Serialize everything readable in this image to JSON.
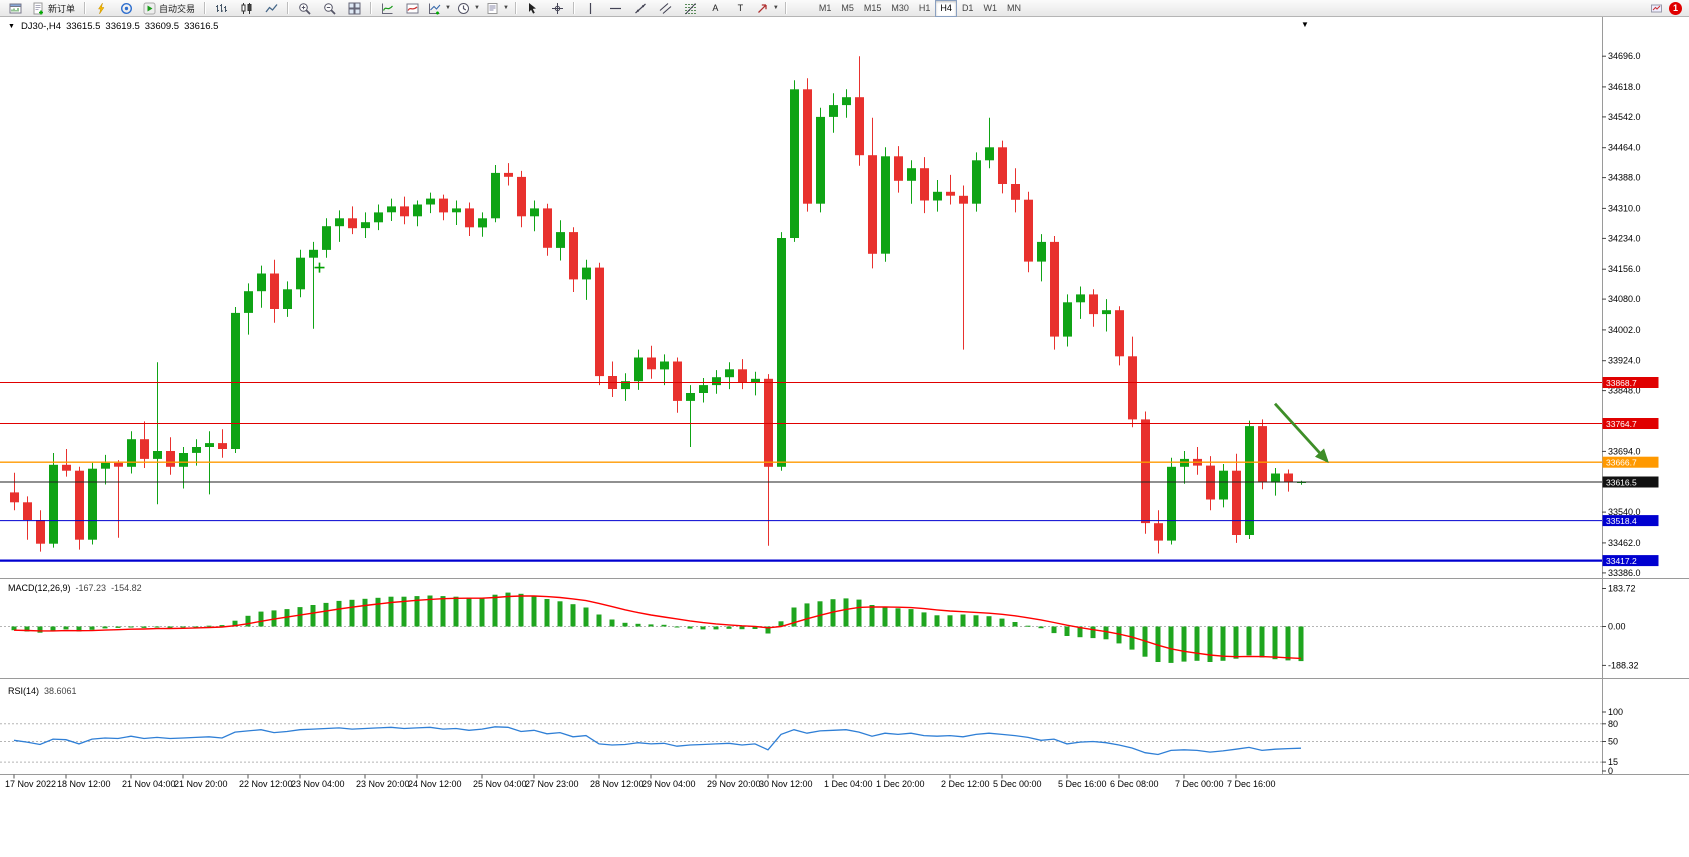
{
  "toolbar": {
    "left_buttons": [
      {
        "name": "new-chart-button",
        "icon": "chart-window"
      },
      {
        "name": "new-order-button",
        "icon": "new-order",
        "label": "新订单"
      },
      {
        "sep": true
      },
      {
        "name": "quick-trade-button",
        "icon": "lightning"
      },
      {
        "name": "community-button",
        "icon": "rings"
      },
      {
        "name": "auto-trading-button",
        "icon": "play",
        "label": "自动交易"
      },
      {
        "sep": true
      },
      {
        "name": "bar-chart-button",
        "icon": "bars"
      },
      {
        "name": "candle-chart-button",
        "icon": "candles"
      },
      {
        "name": "line-chart-button",
        "icon": "line"
      },
      {
        "sep": true
      },
      {
        "name": "zoom-in-button",
        "icon": "zoom-in"
      },
      {
        "name": "zoom-out-button",
        "icon": "zoom-out"
      },
      {
        "name": "tile-windows-button",
        "icon": "grid"
      },
      {
        "sep": true
      },
      {
        "name": "indicators-button",
        "icon": "indicator"
      },
      {
        "name": "objects-window-button",
        "icon": "indicator2"
      },
      {
        "name": "add-indicator-button",
        "icon": "add-indicator",
        "dropdown": true
      },
      {
        "name": "period-button",
        "icon": "clock",
        "dropdown": true
      },
      {
        "name": "template-button",
        "icon": "template",
        "dropdown": true
      },
      {
        "sep": true
      },
      {
        "name": "cursor-button",
        "icon": "cursor"
      },
      {
        "name": "crosshair-button",
        "icon": "crosshair"
      },
      {
        "sep": true
      },
      {
        "name": "vertical-line-button",
        "icon": "vline"
      },
      {
        "name": "horizontal-line-button",
        "icon": "hline"
      },
      {
        "name": "trendline-button",
        "icon": "trendline"
      },
      {
        "name": "channel-button",
        "icon": "channel"
      },
      {
        "name": "fibonacci-button",
        "icon": "fibo"
      },
      {
        "name": "text-tool-button",
        "label": "A"
      },
      {
        "name": "label-tool-button",
        "label": "T"
      },
      {
        "name": "arrows-tool-button",
        "icon": "arrows",
        "dropdown": true
      },
      {
        "sep": true
      }
    ],
    "timeframes": [
      "M1",
      "M5",
      "M15",
      "M30",
      "H1",
      "H4",
      "D1",
      "W1",
      "MN"
    ],
    "active_timeframe": "H4",
    "notification_badge": "1"
  },
  "chart": {
    "symbol_period": "DJ30-,H4",
    "ohlc": {
      "open": "33615.5",
      "high": "33619.5",
      "low": "33609.5",
      "close": "33616.5"
    },
    "colors": {
      "up": "#0fa315",
      "down": "#e8312e",
      "macd_hist": "#1fa51f",
      "macd_signal": "#ff0000",
      "rsi_line": "#2f7fd6",
      "level_red": "#e00000",
      "level_orange": "#ff9900",
      "level_blue": "#0000cc",
      "bid_line": "#222222",
      "arrow": "#3e8e28"
    },
    "price_badges": [
      {
        "label": "33868.7",
        "price": 33868.7,
        "bg": "#e00000"
      },
      {
        "label": "33764.7",
        "price": 33764.7,
        "bg": "#e00000"
      },
      {
        "label": "33666.7",
        "price": 33666.7,
        "bg": "#ff9900"
      },
      {
        "label": "33616.5",
        "price": 33616.5,
        "bg": "#111111"
      },
      {
        "label": "33518.4",
        "price": 33518.4,
        "bg": "#0000d0"
      },
      {
        "label": "33417.2",
        "price": 33417.2,
        "bg": "#0000d0"
      }
    ],
    "annotations": [
      {
        "type": "arrow",
        "from_bar": 97,
        "from_price": 33815,
        "to_bar": 101,
        "to_price": 33670,
        "color": "#3e8e28"
      },
      {
        "type": "plus",
        "bar": 23.5,
        "price": 34160,
        "color": "#00a000"
      }
    ]
  },
  "chart_data": [
    {
      "type": "candlestick",
      "symbol": "DJ30-",
      "timeframe": "H4",
      "y_ticks": [
        "34696.0",
        "34618.0",
        "34542.0",
        "34464.0",
        "34388.0",
        "34310.0",
        "34234.0",
        "34156.0",
        "34080.0",
        "34002.0",
        "33924.0",
        "33848.0",
        "33694.0",
        "33540.0",
        "33462.0",
        "33386.0"
      ],
      "levels": [
        {
          "price": 33868.7,
          "color": "#e00000",
          "width": 1
        },
        {
          "price": 33764.7,
          "color": "#e00000",
          "width": 1
        },
        {
          "price": 33666.7,
          "color": "#ff9900",
          "width": 1.4
        },
        {
          "price": 33616.5,
          "color": "#222222",
          "width": 1,
          "role": "bid"
        },
        {
          "price": 33518.4,
          "color": "#0000d0",
          "width": 1
        },
        {
          "price": 33417.2,
          "color": "#0000d0",
          "width": 2.2
        }
      ],
      "time_labels": [
        {
          "i": 0,
          "t": "17 Nov 2022"
        },
        {
          "i": 4,
          "t": "18 Nov 12:00"
        },
        {
          "i": 9,
          "t": "21 Nov 04:00"
        },
        {
          "i": 13,
          "t": "21 Nov 20:00"
        },
        {
          "i": 18,
          "t": "22 Nov 12:00"
        },
        {
          "i": 22,
          "t": "23 Nov 04:00"
        },
        {
          "i": 27,
          "t": "23 Nov 20:00"
        },
        {
          "i": 31,
          "t": "24 Nov 12:00"
        },
        {
          "i": 36,
          "t": "25 Nov 04:00"
        },
        {
          "i": 40,
          "t": "27 Nov 23:00"
        },
        {
          "i": 45,
          "t": "28 Nov 12:00"
        },
        {
          "i": 49,
          "t": "29 Nov 04:00"
        },
        {
          "i": 54,
          "t": "29 Nov 20:00"
        },
        {
          "i": 58,
          "t": "30 Nov 12:00"
        },
        {
          "i": 63,
          "t": "1 Dec 04:00"
        },
        {
          "i": 67,
          "t": "1 Dec 20:00"
        },
        {
          "i": 72,
          "t": "2 Dec 12:00"
        },
        {
          "i": 76,
          "t": "5 Dec 00:00"
        },
        {
          "i": 81,
          "t": "5 Dec 16:00"
        },
        {
          "i": 85,
          "t": "6 Dec 08:00"
        },
        {
          "i": 90,
          "t": "7 Dec 00:00"
        },
        {
          "i": 94,
          "t": "7 Dec 16:00"
        }
      ],
      "candles": [
        [
          33590,
          33640,
          33545,
          33565
        ],
        [
          33565,
          33580,
          33470,
          33520
        ],
        [
          33520,
          33545,
          33440,
          33460
        ],
        [
          33460,
          33690,
          33450,
          33660
        ],
        [
          33660,
          33700,
          33630,
          33645
        ],
        [
          33645,
          33655,
          33445,
          33470
        ],
        [
          33470,
          33665,
          33458,
          33650
        ],
        [
          33650,
          33685,
          33610,
          33665
        ],
        [
          33665,
          33672,
          33475,
          33655
        ],
        [
          33655,
          33745,
          33638,
          33725
        ],
        [
          33725,
          33770,
          33652,
          33675
        ],
        [
          33675,
          33920,
          33560,
          33695
        ],
        [
          33695,
          33730,
          33635,
          33655
        ],
        [
          33655,
          33705,
          33600,
          33690
        ],
        [
          33690,
          33725,
          33658,
          33705
        ],
        [
          33705,
          33745,
          33585,
          33715
        ],
        [
          33715,
          33750,
          33678,
          33700
        ],
        [
          33700,
          34060,
          33690,
          34045
        ],
        [
          34045,
          34120,
          33990,
          34100
        ],
        [
          34100,
          34165,
          34058,
          34145
        ],
        [
          34145,
          34180,
          34020,
          34055
        ],
        [
          34055,
          34125,
          34035,
          34105
        ],
        [
          34105,
          34205,
          34085,
          34185
        ],
        [
          34185,
          34225,
          34005,
          34205
        ],
        [
          34205,
          34285,
          34185,
          34265
        ],
        [
          34265,
          34305,
          34225,
          34285
        ],
        [
          34285,
          34315,
          34245,
          34260
        ],
        [
          34260,
          34300,
          34235,
          34275
        ],
        [
          34275,
          34320,
          34255,
          34300
        ],
        [
          34300,
          34335,
          34278,
          34315
        ],
        [
          34315,
          34340,
          34270,
          34290
        ],
        [
          34290,
          34330,
          34265,
          34320
        ],
        [
          34320,
          34350,
          34298,
          34335
        ],
        [
          34335,
          34345,
          34280,
          34300
        ],
        [
          34300,
          34330,
          34268,
          34310
        ],
        [
          34310,
          34325,
          34240,
          34262
        ],
        [
          34262,
          34300,
          34238,
          34285
        ],
        [
          34285,
          34420,
          34275,
          34400
        ],
        [
          34400,
          34425,
          34368,
          34390
        ],
        [
          34390,
          34405,
          34262,
          34290
        ],
        [
          34290,
          34330,
          34252,
          34310
        ],
        [
          34310,
          34322,
          34190,
          34210
        ],
        [
          34210,
          34280,
          34178,
          34250
        ],
        [
          34250,
          34262,
          34098,
          34130
        ],
        [
          34130,
          34180,
          34078,
          34160
        ],
        [
          34160,
          34172,
          33862,
          33885
        ],
        [
          33885,
          33922,
          33832,
          33852
        ],
        [
          33852,
          33892,
          33822,
          33872
        ],
        [
          33872,
          33952,
          33850,
          33932
        ],
        [
          33932,
          33962,
          33878,
          33902
        ],
        [
          33902,
          33940,
          33862,
          33922
        ],
        [
          33922,
          33932,
          33792,
          33822
        ],
        [
          33822,
          33862,
          33705,
          33842
        ],
        [
          33842,
          33880,
          33818,
          33862
        ],
        [
          33862,
          33900,
          33840,
          33882
        ],
        [
          33882,
          33920,
          33852,
          33902
        ],
        [
          33902,
          33928,
          33852,
          33868
        ],
        [
          33868,
          33896,
          33836,
          33878
        ],
        [
          33878,
          33890,
          33455,
          33655
        ],
        [
          33655,
          34250,
          33645,
          34235
        ],
        [
          34235,
          34635,
          34225,
          34612
        ],
        [
          34612,
          34640,
          34302,
          34322
        ],
        [
          34322,
          34565,
          34300,
          34542
        ],
        [
          34542,
          34602,
          34502,
          34572
        ],
        [
          34572,
          34612,
          34540,
          34592
        ],
        [
          34592,
          34696,
          34418,
          34445
        ],
        [
          34445,
          34540,
          34158,
          34195
        ],
        [
          34195,
          34465,
          34175,
          34442
        ],
        [
          34442,
          34468,
          34350,
          34380
        ],
        [
          34380,
          34432,
          34322,
          34412
        ],
        [
          34412,
          34440,
          34298,
          34330
        ],
        [
          34330,
          34382,
          34302,
          34352
        ],
        [
          34352,
          34395,
          34320,
          34342
        ],
        [
          34342,
          34368,
          33952,
          34322
        ],
        [
          34322,
          34452,
          34302,
          34432
        ],
        [
          34432,
          34540,
          34412,
          34465
        ],
        [
          34465,
          34482,
          34348,
          34372
        ],
        [
          34372,
          34412,
          34300,
          34332
        ],
        [
          34332,
          34352,
          34148,
          34175
        ],
        [
          34175,
          34245,
          34125,
          34225
        ],
        [
          34225,
          34240,
          33952,
          33985
        ],
        [
          33985,
          34092,
          33960,
          34072
        ],
        [
          34072,
          34112,
          34030,
          34092
        ],
        [
          34092,
          34105,
          34010,
          34042
        ],
        [
          34042,
          34080,
          33998,
          34052
        ],
        [
          34052,
          34062,
          33912,
          33935
        ],
        [
          33935,
          33985,
          33755,
          33775
        ],
        [
          33775,
          33795,
          33485,
          33512
        ],
        [
          33512,
          33545,
          33435,
          33468
        ],
        [
          33468,
          33678,
          33458,
          33655
        ],
        [
          33655,
          33695,
          33612,
          33675
        ],
        [
          33675,
          33705,
          33635,
          33658
        ],
        [
          33658,
          33682,
          33545,
          33572
        ],
        [
          33572,
          33662,
          33552,
          33645
        ],
        [
          33645,
          33688,
          33462,
          33482
        ],
        [
          33482,
          33772,
          33472,
          33758
        ],
        [
          33758,
          33775,
          33598,
          33615
        ],
        [
          33615,
          33652,
          33582,
          33638
        ],
        [
          33638,
          33648,
          33592,
          33615.5
        ],
        [
          33615.5,
          33619.5,
          33609.5,
          33616.5
        ]
      ]
    },
    {
      "type": "bar",
      "name": "MACD",
      "title": "MACD(12,26,9)",
      "current_main": "-167.23",
      "current_signal": "-154.82",
      "signal_period": 9,
      "y_ticks": [
        "183.72",
        "0.00",
        "-188.32"
      ],
      "values": [
        -18,
        -24,
        -30,
        -20,
        -14,
        -24,
        -16,
        -9,
        -7,
        -4,
        -7,
        -4,
        -7,
        -4,
        0,
        4,
        7,
        28,
        52,
        72,
        78,
        84,
        94,
        104,
        114,
        124,
        129,
        134,
        139,
        144,
        144,
        147,
        150,
        147,
        144,
        139,
        137,
        154,
        164,
        158,
        148,
        133,
        122,
        108,
        92,
        58,
        34,
        18,
        13,
        10,
        8,
        -2,
        -10,
        -14,
        -14,
        -11,
        -13,
        -12,
        -34,
        25,
        92,
        112,
        122,
        132,
        136,
        130,
        104,
        94,
        88,
        84,
        68,
        54,
        54,
        58,
        54,
        50,
        38,
        22,
        4,
        -8,
        -32,
        -46,
        -52,
        -56,
        -62,
        -82,
        -112,
        -146,
        -172,
        -176,
        -170,
        -166,
        -172,
        -166,
        -156,
        -140,
        -150,
        -158,
        -164,
        -167.23
      ]
    },
    {
      "type": "line",
      "name": "RSI",
      "title": "RSI(14)",
      "current": "38.6061",
      "levels": [
        80,
        50,
        15
      ],
      "y_ticks": [
        "100",
        "80",
        "50",
        "15",
        "0"
      ],
      "range": [
        0,
        100
      ],
      "values": [
        52,
        49,
        45,
        54,
        53,
        46,
        54,
        56,
        55,
        59,
        55,
        57,
        55,
        56,
        57,
        58,
        56,
        66,
        68,
        70,
        65,
        67,
        70,
        71,
        72,
        73,
        71,
        72,
        73,
        74,
        72,
        73,
        74,
        71,
        72,
        69,
        71,
        75,
        74,
        67,
        69,
        63,
        65,
        58,
        60,
        46,
        44,
        45,
        48,
        46,
        47,
        42,
        44,
        45,
        46,
        47,
        44,
        46,
        36,
        62,
        70,
        64,
        68,
        69,
        70,
        66,
        59,
        64,
        62,
        64,
        60,
        59,
        60,
        58,
        62,
        64,
        62,
        60,
        57,
        52,
        54,
        46,
        49,
        50,
        48,
        44,
        39,
        31,
        28,
        35,
        36,
        35,
        32,
        34,
        37,
        40,
        35,
        37,
        38,
        38.6
      ]
    }
  ]
}
